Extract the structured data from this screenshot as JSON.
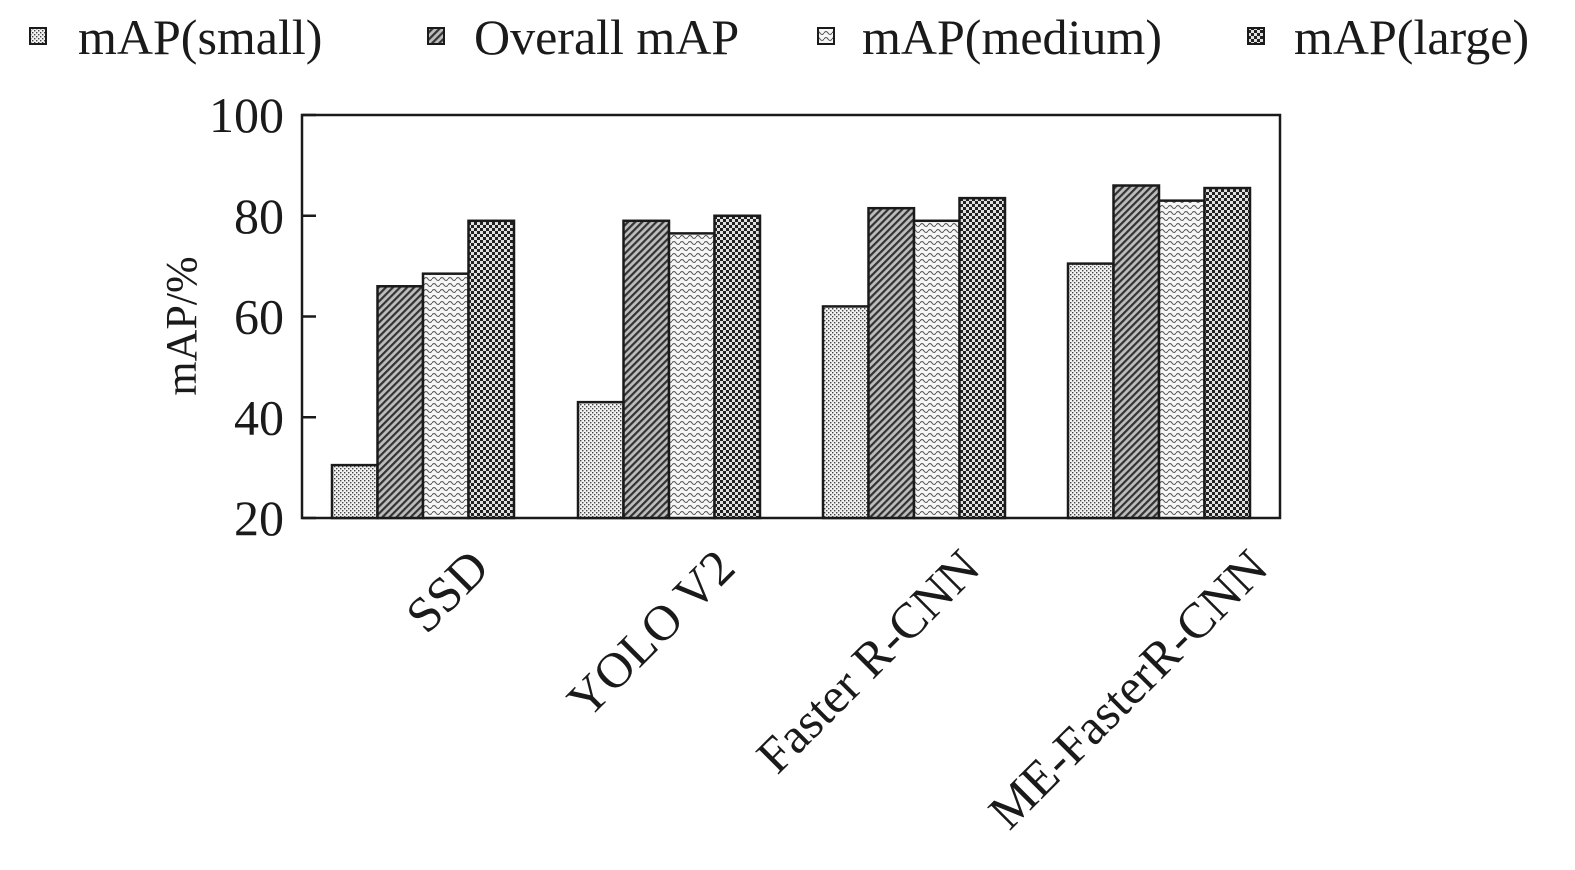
{
  "chart_data": {
    "type": "bar",
    "title": "",
    "xlabel": "",
    "ylabel": "mAP/%",
    "ylim": [
      20,
      100
    ],
    "yticks": [
      "20",
      "40",
      "60",
      "80",
      "100"
    ],
    "grid": false,
    "legend_position": "top",
    "categories": [
      "SSD",
      "YOLO V2",
      "Faster R-CNN",
      "ME-FasterR-CNN"
    ],
    "series": [
      {
        "name": "mAP(small)",
        "pattern": "dots-light",
        "values": [
          30.5,
          43,
          62,
          70.5
        ]
      },
      {
        "name": "Overall mAP",
        "pattern": "diagonal-dark",
        "values": [
          66,
          79,
          81.5,
          86
        ]
      },
      {
        "name": "mAP(medium)",
        "pattern": "wave-light",
        "values": [
          68.5,
          76.5,
          79,
          83
        ]
      },
      {
        "name": "mAP(large)",
        "pattern": "checker-dark",
        "values": [
          79,
          80,
          83.5,
          85.5
        ]
      }
    ]
  }
}
